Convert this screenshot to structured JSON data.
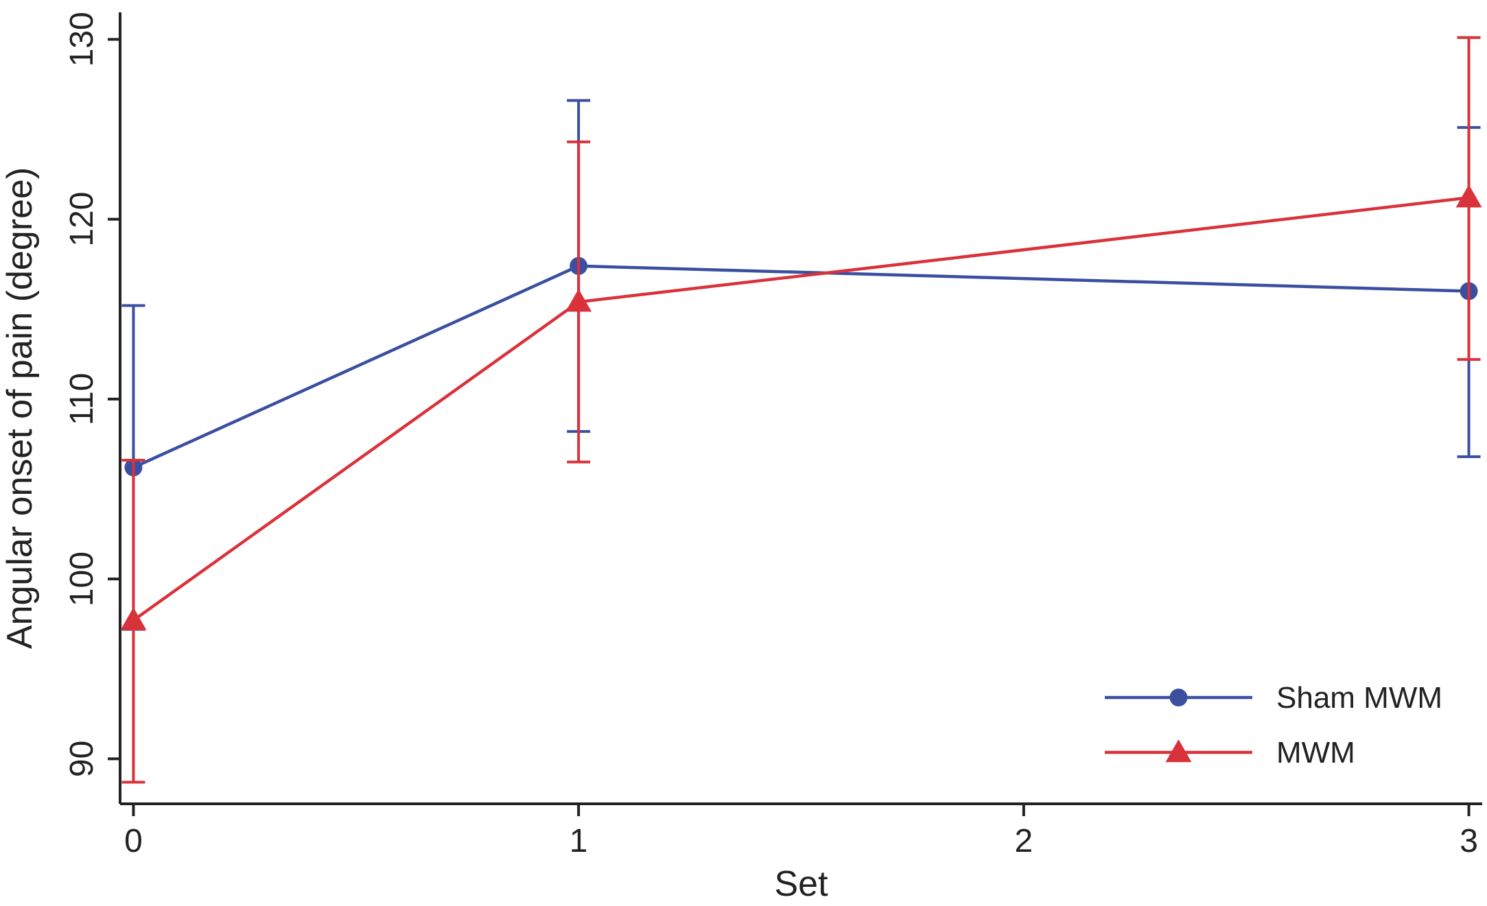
{
  "chart_data": {
    "type": "line",
    "title": "",
    "xlabel": "Set",
    "ylabel": "Angular onset of pain (degree)",
    "x": [
      0,
      1,
      3
    ],
    "xticks": [
      0,
      1,
      2,
      3
    ],
    "yticks": [
      90,
      100,
      110,
      120,
      130
    ],
    "xlim": [
      -0.03,
      3.03
    ],
    "ylim": [
      87.5,
      131.5
    ],
    "grid": false,
    "legend_position": "bottom-right",
    "series": [
      {
        "name": "Sham MWM",
        "color": "#3a4fa0",
        "marker": "circle",
        "values": [
          106.2,
          117.4,
          116.0
        ],
        "error_low": [
          97.2,
          108.2,
          106.8
        ],
        "error_high": [
          115.2,
          126.6,
          125.1
        ]
      },
      {
        "name": "MWM",
        "color": "#d9323a",
        "marker": "triangle",
        "values": [
          97.7,
          115.4,
          121.2
        ],
        "error_low": [
          88.7,
          106.5,
          112.2
        ],
        "error_high": [
          106.6,
          124.3,
          130.1
        ]
      }
    ]
  }
}
